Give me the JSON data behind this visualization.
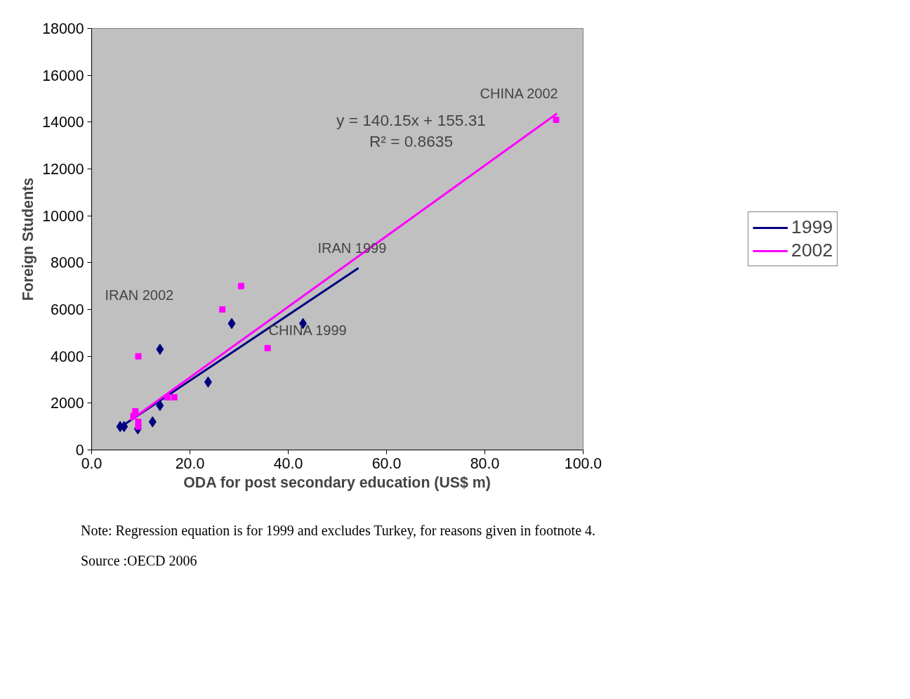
{
  "chart_data": {
    "type": "scatter",
    "xlabel": "ODA for post secondary education (US$ m)",
    "ylabel": "Foreign Students",
    "xlim": [
      0,
      100
    ],
    "ylim": [
      0,
      18000
    ],
    "xticks": [
      {
        "value": 0,
        "label": "0.0"
      },
      {
        "value": 20,
        "label": "20.0"
      },
      {
        "value": 40,
        "label": "40.0"
      },
      {
        "value": 60,
        "label": "60.0"
      },
      {
        "value": 80,
        "label": "80.0"
      },
      {
        "value": 100,
        "label": "100.0"
      }
    ],
    "yticks": [
      0,
      2000,
      4000,
      6000,
      8000,
      10000,
      12000,
      14000,
      16000,
      18000
    ],
    "grid": false,
    "legend": "right",
    "series": [
      {
        "marker": "diamond",
        "color": "#000080",
        "x": [
          5.8,
          6.6,
          9.4,
          12.4,
          13.9,
          13.9,
          23.7,
          28.5,
          43.0
        ],
        "values": [
          1000,
          1000,
          900,
          1200,
          1900,
          4300,
          2900,
          5400,
          5400
        ]
      },
      {
        "marker": "square",
        "color": "#ff00ff",
        "x": [
          8.5,
          8.9,
          9.5,
          9.5,
          9.5,
          15.4,
          16.8,
          26.6,
          30.4,
          35.8,
          94.5
        ],
        "values": [
          1450,
          1650,
          4000,
          1200,
          1000,
          2250,
          2250,
          6000,
          7000,
          4350,
          14100
        ]
      },
      {
        "type": "line",
        "name": "1999",
        "color": "#000080",
        "x": [
          5.8,
          54.3
        ],
        "values": [
          970,
          7770
        ]
      },
      {
        "type": "line",
        "name": "2002",
        "color": "#ff00ff",
        "x": [
          7.9,
          94.7
        ],
        "values": [
          1270,
          14370
        ]
      }
    ],
    "annotations": [
      "CHINA 2002",
      "IRAN 1999",
      "IRAN 2002",
      "CHINA 1999",
      "y = 140.15x + 155.31",
      "R² = 0.8635",
      "Note: Regression equation is for 1999 and excludes Turkey, for reasons given in footnote 4.",
      "Source :OECD 2006"
    ]
  }
}
